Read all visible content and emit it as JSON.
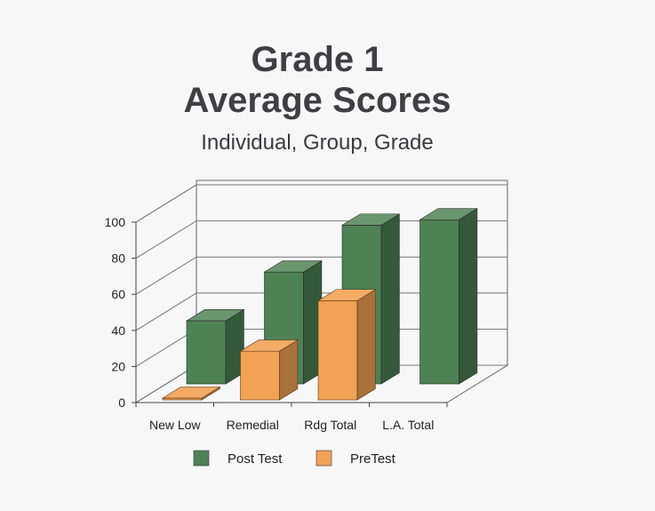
{
  "chart_data": {
    "type": "bar",
    "title_line1": "Grade 1",
    "title_line2": "Average Scores",
    "subtitle": "Individual, Group, Grade",
    "categories": [
      "New Low",
      "Remedial",
      "Rdg Total",
      "L.A. Total"
    ],
    "series": [
      {
        "name": "Post Test",
        "values": [
          35,
          62,
          88,
          91
        ],
        "color": "#4e8255"
      },
      {
        "name": "PreTest",
        "values": [
          1,
          27,
          55,
          0
        ],
        "color": "#f2a254"
      }
    ],
    "ylim": [
      0,
      100
    ],
    "yticks": [
      0,
      20,
      40,
      60,
      80,
      100
    ],
    "grid": true,
    "legend": "bottom"
  }
}
